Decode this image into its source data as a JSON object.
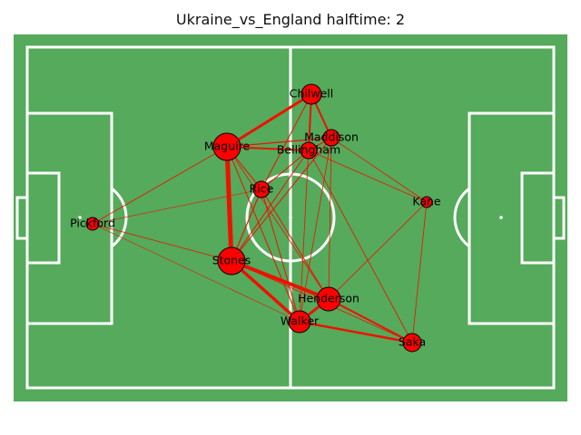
{
  "title": "Ukraine_vs_England halftime: 2",
  "colors": {
    "pitch": "#55aa5b",
    "lines": "#ffffff",
    "node_fill": "#ff0000",
    "node_stroke": "#000000",
    "edge": "#ee1100"
  },
  "players": [
    {
      "name": "Chilwell"
    },
    {
      "name": "Maddison"
    },
    {
      "name": "Maguire"
    },
    {
      "name": "Bellingham"
    },
    {
      "name": "Rice"
    },
    {
      "name": "Kane"
    },
    {
      "name": "Pickford"
    },
    {
      "name": "Stones"
    },
    {
      "name": "Henderson"
    },
    {
      "name": "Walker"
    },
    {
      "name": "Saka"
    }
  ]
}
